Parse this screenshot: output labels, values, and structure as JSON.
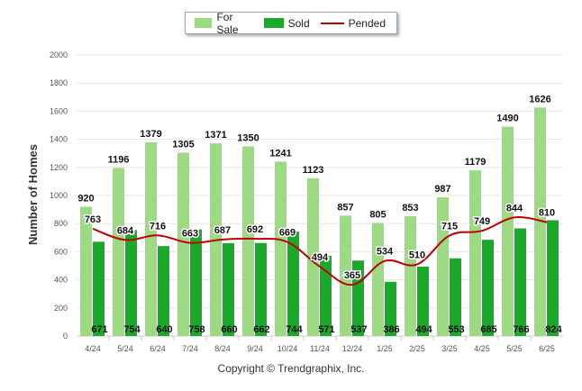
{
  "chart_data": {
    "type": "bar",
    "categories": [
      "4/24",
      "5/24",
      "6/24",
      "7/24",
      "8/24",
      "9/24",
      "10/24",
      "11/24",
      "12/24",
      "1/25",
      "2/25",
      "3/25",
      "4/25",
      "5/25",
      "6/25"
    ],
    "series": [
      {
        "name": "For Sale",
        "type": "bar",
        "color": "#9ddb82",
        "values": [
          920,
          1196,
          1379,
          1305,
          1371,
          1350,
          1241,
          1123,
          857,
          805,
          853,
          987,
          1179,
          1490,
          1626
        ]
      },
      {
        "name": "Sold",
        "type": "bar",
        "color": "#1aaa2a",
        "values": [
          671,
          754,
          640,
          758,
          660,
          662,
          744,
          571,
          537,
          386,
          494,
          553,
          685,
          766,
          824
        ]
      },
      {
        "name": "Pended",
        "type": "line",
        "color": "#c00000",
        "values": [
          763,
          684,
          716,
          663,
          687,
          692,
          669,
          494,
          365,
          534,
          510,
          715,
          749,
          844,
          810
        ]
      }
    ],
    "ylabel": "Number of Homes",
    "ylim": [
      0,
      2000
    ],
    "yticks": [
      0,
      200,
      400,
      600,
      800,
      1000,
      1200,
      1400,
      1600,
      1800,
      2000
    ],
    "grid": true,
    "legend": "top-center"
  },
  "footer": {
    "copyright": "Copyright © Trendgraphix, Inc."
  }
}
